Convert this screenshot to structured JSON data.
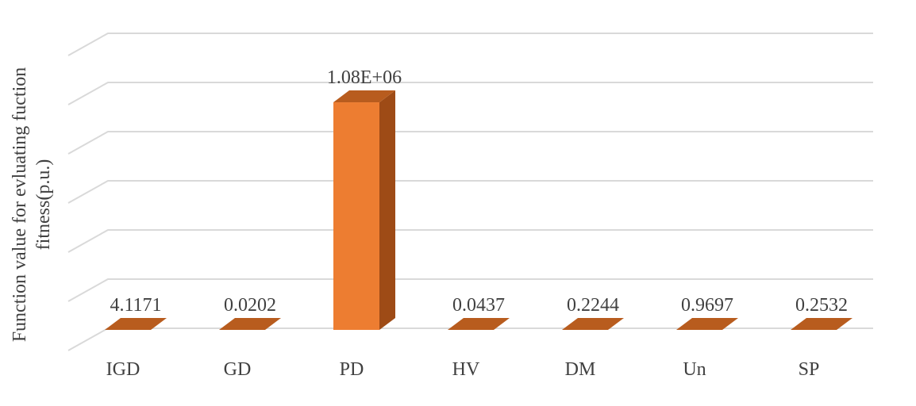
{
  "chart_data": {
    "type": "bar",
    "style": "3d-column",
    "categories": [
      "IGD",
      "GD",
      "PD",
      "HV",
      "DM",
      "Un",
      "SP"
    ],
    "values": [
      4.1171,
      0.0202,
      1080000,
      0.0437,
      0.2244,
      0.9697,
      0.2532
    ],
    "data_labels": [
      "4.1171",
      "0.0202",
      "1.08E+06",
      "0.0437",
      "0.2244",
      "0.9697",
      "0.2532"
    ],
    "title": "",
    "xlabel": "",
    "ylabel_lines": [
      "Function value for evluating fuction",
      "fitness(p.u.)"
    ],
    "ylim": [
      0,
      1400000
    ],
    "grid": true,
    "legend": "none",
    "colors": {
      "bar_front": "#ED7D31",
      "bar_side": "#9E4B16",
      "bar_top": "#B85C1E",
      "grid": "#D9D9D9",
      "text": "#404040"
    }
  }
}
